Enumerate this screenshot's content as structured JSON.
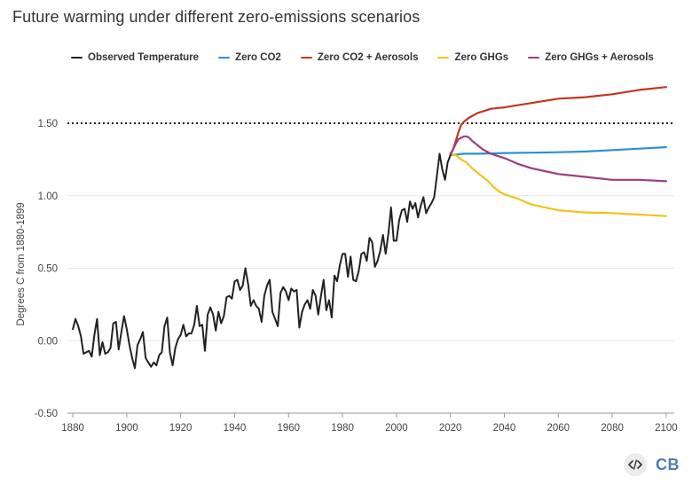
{
  "title": "Future warming under different zero-emissions scenarios",
  "colors": {
    "observed": "#222222",
    "zero_co2": "#2f8fce",
    "zero_co2_aerosols": "#c4361f",
    "zero_ghgs": "#f0c419",
    "zero_ghgs_aerosols": "#9b3f80",
    "grid": "#e6e6e6",
    "reference_line": "#222222"
  },
  "legend": {
    "items": [
      {
        "label": "Observed Temperature",
        "color": "#222222"
      },
      {
        "label": "Zero CO2",
        "color": "#2f8fce"
      },
      {
        "label": "Zero CO2 + Aerosols",
        "color": "#c4361f"
      },
      {
        "label": "Zero GHGs",
        "color": "#f0c419"
      },
      {
        "label": "Zero GHGs + Aerosols",
        "color": "#9b3f80"
      }
    ]
  },
  "brand": {
    "embed_icon": "code-embed-icon",
    "logo_text": "CB"
  },
  "chart_data": {
    "type": "line",
    "title": "Future warming under different zero-emissions scenarios",
    "xlabel": "",
    "ylabel": "Degrees C from 1880-1899",
    "xlim": [
      1878,
      2103
    ],
    "ylim": [
      -0.5,
      1.8
    ],
    "x_ticks": [
      1880,
      1900,
      1920,
      1940,
      1960,
      1980,
      2000,
      2020,
      2040,
      2060,
      2080,
      2100
    ],
    "y_ticks": [
      -0.5,
      0,
      0.5,
      1,
      1.5
    ],
    "y_tick_labels": [
      "-0.50",
      "0.00",
      "0.50",
      "1.00",
      "1.50"
    ],
    "grid": "horizontal",
    "legend_position": "top",
    "reference_line": {
      "y": 1.5,
      "style": "dotted"
    },
    "series": [
      {
        "name": "Observed Temperature",
        "color": "#222222",
        "x": [
          1880,
          1881,
          1882,
          1883,
          1884,
          1885,
          1886,
          1887,
          1888,
          1889,
          1890,
          1891,
          1892,
          1893,
          1894,
          1895,
          1896,
          1897,
          1898,
          1899,
          1900,
          1901,
          1902,
          1903,
          1904,
          1905,
          1906,
          1907,
          1908,
          1909,
          1910,
          1911,
          1912,
          1913,
          1914,
          1915,
          1916,
          1917,
          1918,
          1919,
          1920,
          1921,
          1922,
          1923,
          1924,
          1925,
          1926,
          1927,
          1928,
          1929,
          1930,
          1931,
          1932,
          1933,
          1934,
          1935,
          1936,
          1937,
          1938,
          1939,
          1940,
          1941,
          1942,
          1943,
          1944,
          1945,
          1946,
          1947,
          1948,
          1949,
          1950,
          1951,
          1952,
          1953,
          1954,
          1955,
          1956,
          1957,
          1958,
          1959,
          1960,
          1961,
          1962,
          1963,
          1964,
          1965,
          1966,
          1967,
          1968,
          1969,
          1970,
          1971,
          1972,
          1973,
          1974,
          1975,
          1976,
          1977,
          1978,
          1979,
          1980,
          1981,
          1982,
          1983,
          1984,
          1985,
          1986,
          1987,
          1988,
          1989,
          1990,
          1991,
          1992,
          1993,
          1994,
          1995,
          1996,
          1997,
          1998,
          1999,
          2000,
          2001,
          2002,
          2003,
          2004,
          2005,
          2006,
          2007,
          2008,
          2009,
          2010,
          2011,
          2012,
          2013,
          2014,
          2015,
          2016,
          2017,
          2018,
          2019,
          2020
        ],
        "values": [
          0.08,
          0.15,
          0.1,
          0.03,
          -0.09,
          -0.08,
          -0.07,
          -0.11,
          0.04,
          0.15,
          -0.1,
          -0.01,
          -0.09,
          -0.08,
          -0.05,
          0.12,
          0.13,
          -0.06,
          0.06,
          0.17,
          0.08,
          -0.03,
          -0.12,
          -0.19,
          -0.03,
          0.01,
          0.06,
          -0.12,
          -0.15,
          -0.18,
          -0.15,
          -0.17,
          -0.1,
          -0.08,
          0.1,
          0.16,
          -0.08,
          -0.17,
          -0.05,
          0.01,
          0.04,
          0.11,
          0.03,
          0.05,
          0.05,
          0.11,
          0.24,
          0.1,
          0.11,
          -0.07,
          0.18,
          0.23,
          0.18,
          0.07,
          0.2,
          0.12,
          0.17,
          0.3,
          0.31,
          0.29,
          0.41,
          0.42,
          0.35,
          0.38,
          0.5,
          0.39,
          0.24,
          0.28,
          0.24,
          0.22,
          0.13,
          0.31,
          0.38,
          0.42,
          0.2,
          0.15,
          0.1,
          0.33,
          0.37,
          0.34,
          0.28,
          0.36,
          0.34,
          0.35,
          0.09,
          0.2,
          0.25,
          0.28,
          0.22,
          0.35,
          0.31,
          0.18,
          0.31,
          0.42,
          0.21,
          0.28,
          0.16,
          0.45,
          0.41,
          0.52,
          0.6,
          0.6,
          0.44,
          0.58,
          0.42,
          0.41,
          0.48,
          0.6,
          0.61,
          0.55,
          0.71,
          0.68,
          0.51,
          0.55,
          0.62,
          0.73,
          0.6,
          0.74,
          0.92,
          0.69,
          0.69,
          0.83,
          0.9,
          0.91,
          0.82,
          0.96,
          0.91,
          0.95,
          0.85,
          0.93,
          0.99,
          0.88,
          0.92,
          0.95,
          0.99,
          1.14,
          1.29,
          1.18,
          1.11,
          1.23,
          1.28
        ]
      },
      {
        "name": "Zero CO2",
        "color": "#2f8fce",
        "x": [
          2020,
          2025,
          2030,
          2040,
          2050,
          2060,
          2070,
          2080,
          2090,
          2100
        ],
        "values": [
          1.28,
          1.29,
          1.29,
          1.295,
          1.297,
          1.3,
          1.305,
          1.315,
          1.325,
          1.335
        ]
      },
      {
        "name": "Zero CO2 + Aerosols",
        "color": "#c4361f",
        "x": [
          2020,
          2021,
          2022,
          2023,
          2024,
          2025,
          2027,
          2030,
          2035,
          2040,
          2050,
          2060,
          2070,
          2080,
          2090,
          2100
        ],
        "values": [
          1.29,
          1.32,
          1.38,
          1.44,
          1.49,
          1.51,
          1.54,
          1.57,
          1.6,
          1.61,
          1.64,
          1.67,
          1.68,
          1.7,
          1.73,
          1.75
        ]
      },
      {
        "name": "Zero GHGs",
        "color": "#f0c419",
        "x": [
          2020,
          2022,
          2024,
          2026,
          2028,
          2030,
          2032,
          2034,
          2036,
          2038,
          2040,
          2045,
          2050,
          2055,
          2060,
          2070,
          2080,
          2090,
          2100
        ],
        "values": [
          1.28,
          1.28,
          1.25,
          1.23,
          1.19,
          1.16,
          1.13,
          1.1,
          1.06,
          1.03,
          1.01,
          0.98,
          0.94,
          0.92,
          0.9,
          0.885,
          0.88,
          0.87,
          0.86
        ]
      },
      {
        "name": "Zero GHGs + Aerosols",
        "color": "#9b3f80",
        "x": [
          2020,
          2021,
          2022,
          2023,
          2024,
          2025,
          2026,
          2027,
          2028,
          2030,
          2032,
          2035,
          2040,
          2045,
          2050,
          2055,
          2060,
          2070,
          2080,
          2090,
          2100
        ],
        "values": [
          1.28,
          1.32,
          1.36,
          1.39,
          1.4,
          1.41,
          1.41,
          1.4,
          1.38,
          1.35,
          1.32,
          1.29,
          1.26,
          1.22,
          1.19,
          1.17,
          1.15,
          1.13,
          1.11,
          1.11,
          1.1
        ]
      }
    ]
  }
}
